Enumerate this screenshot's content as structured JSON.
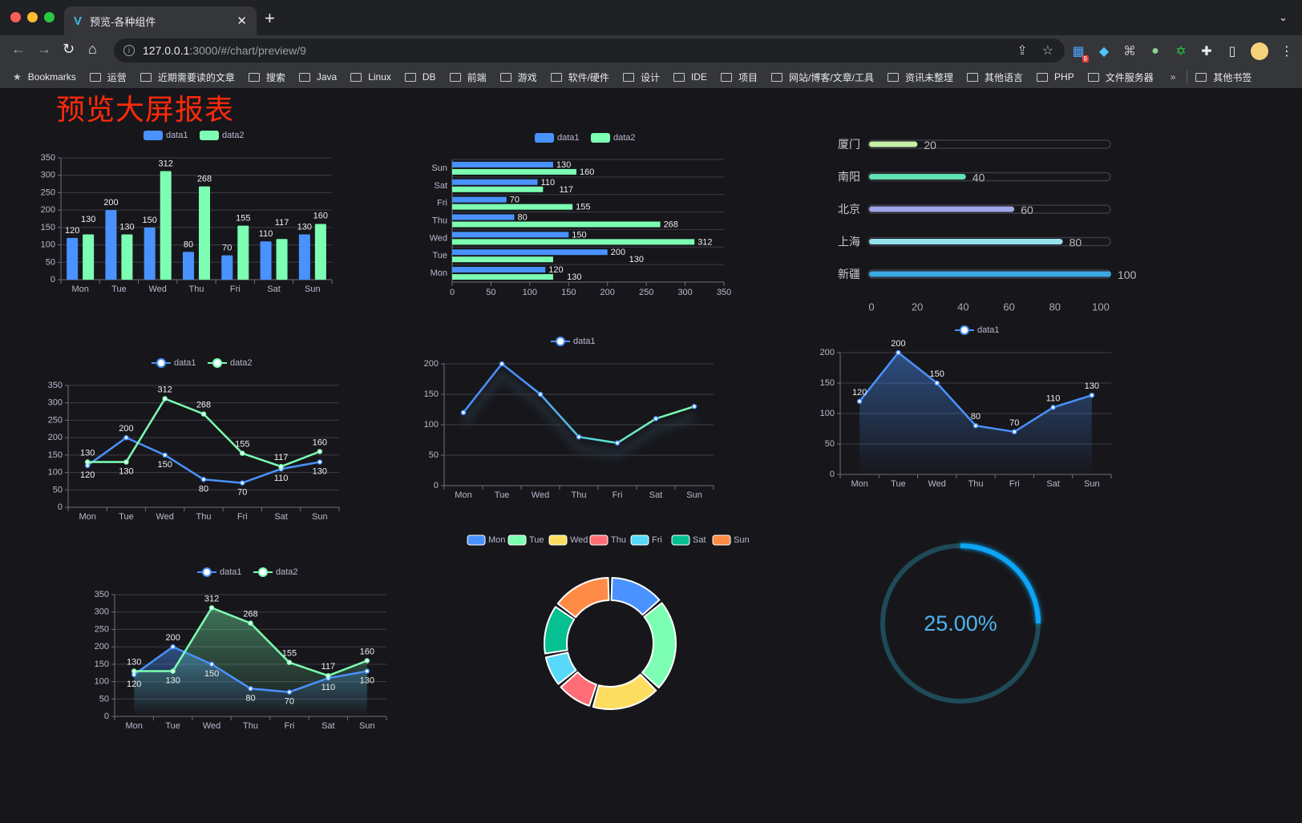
{
  "browser": {
    "tab_title": "预览-各种组件",
    "url_host": "127.0.0.1",
    "url_path": ":3000/#/chart/preview/9",
    "extension_badge": "9",
    "bookmarks_label": "Bookmarks",
    "bookmarks": [
      "运营",
      "近期需要读的文章",
      "搜索",
      "Java",
      "Linux",
      "DB",
      "前端",
      "游戏",
      "软件/硬件",
      "设计",
      "IDE",
      "项目",
      "网站/博客/文章/工具",
      "资讯未整理",
      "其他语言",
      "PHP",
      "文件服务器"
    ],
    "more": "»",
    "other_bookmarks": "其他书签"
  },
  "page": {
    "title": "预览大屏报表"
  },
  "colors": {
    "data1": "#4992ff",
    "data2": "#7cffb2",
    "palette": [
      "#4992ff",
      "#7cffb2",
      "#fddd60",
      "#ff6e76",
      "#58d9f9",
      "#05c091",
      "#ff8a45"
    ],
    "progress": [
      "#c8f0a8",
      "#62e3b3",
      "#9fa5e8",
      "#94e3ec",
      "#3aa8e0"
    ],
    "gauge": "#0ea5f5",
    "title": "#ff2a0a"
  },
  "chart_data": [
    {
      "type": "bar",
      "legend": [
        "data1",
        "data2"
      ],
      "legend_placement": "top",
      "categories": [
        "Mon",
        "Tue",
        "Wed",
        "Thu",
        "Fri",
        "Sat",
        "Sun"
      ],
      "series": [
        {
          "name": "data1",
          "values": [
            120,
            200,
            150,
            80,
            70,
            110,
            130
          ]
        },
        {
          "name": "data2",
          "values": [
            130,
            130,
            312,
            268,
            155,
            117,
            160
          ]
        }
      ],
      "ylim": [
        0,
        350
      ],
      "yticks": [
        0,
        50,
        100,
        150,
        200,
        250,
        300,
        350
      ],
      "grid": true
    },
    {
      "type": "bar",
      "orientation": "horizontal",
      "legend": [
        "data1",
        "data2"
      ],
      "legend_placement": "top",
      "categories": [
        "Mon",
        "Tue",
        "Wed",
        "Thu",
        "Fri",
        "Sat",
        "Sun"
      ],
      "series": [
        {
          "name": "data1",
          "values": [
            120,
            200,
            150,
            80,
            70,
            110,
            130
          ]
        },
        {
          "name": "data2",
          "values": [
            130,
            130,
            312,
            268,
            155,
            117,
            160
          ]
        }
      ],
      "xlim": [
        0,
        350
      ],
      "xticks": [
        0,
        50,
        100,
        150,
        200,
        250,
        300,
        350
      ],
      "grid": true
    },
    {
      "type": "bar",
      "orientation": "horizontal",
      "style": "progress",
      "categories": [
        "厦门",
        "南阳",
        "北京",
        "上海",
        "新疆"
      ],
      "values": [
        20,
        40,
        60,
        80,
        100
      ],
      "xlim": [
        0,
        100
      ],
      "xticks": [
        0,
        20,
        40,
        60,
        80,
        100
      ]
    },
    {
      "type": "line",
      "legend": [
        "data1",
        "data2"
      ],
      "legend_placement": "top",
      "categories": [
        "Mon",
        "Tue",
        "Wed",
        "Thu",
        "Fri",
        "Sat",
        "Sun"
      ],
      "series": [
        {
          "name": "data1",
          "values": [
            120,
            200,
            150,
            80,
            70,
            110,
            130
          ]
        },
        {
          "name": "data2",
          "values": [
            130,
            130,
            312,
            268,
            155,
            117,
            160
          ]
        }
      ],
      "ylim": [
        0,
        350
      ],
      "yticks": [
        0,
        50,
        100,
        150,
        200,
        250,
        300,
        350
      ],
      "grid": true
    },
    {
      "type": "line",
      "legend": [
        "data1"
      ],
      "legend_placement": "top",
      "categories": [
        "Mon",
        "Tue",
        "Wed",
        "Thu",
        "Fri",
        "Sat",
        "Sun"
      ],
      "series": [
        {
          "name": "data1",
          "values": [
            120,
            200,
            150,
            80,
            70,
            110,
            130
          ]
        }
      ],
      "ylim": [
        0,
        200
      ],
      "yticks": [
        0,
        50,
        100,
        150,
        200
      ],
      "grid": true
    },
    {
      "type": "area",
      "legend": [
        "data1"
      ],
      "legend_placement": "top",
      "categories": [
        "Mon",
        "Tue",
        "Wed",
        "Thu",
        "Fri",
        "Sat",
        "Sun"
      ],
      "series": [
        {
          "name": "data1",
          "values": [
            120,
            200,
            150,
            80,
            70,
            110,
            130
          ]
        }
      ],
      "ylim": [
        0,
        200
      ],
      "yticks": [
        0,
        50,
        100,
        150,
        200
      ],
      "grid": true
    },
    {
      "type": "area",
      "legend": [
        "data1",
        "data2"
      ],
      "legend_placement": "top",
      "categories": [
        "Mon",
        "Tue",
        "Wed",
        "Thu",
        "Fri",
        "Sat",
        "Sun"
      ],
      "series": [
        {
          "name": "data1",
          "values": [
            120,
            200,
            150,
            80,
            70,
            110,
            130
          ]
        },
        {
          "name": "data2",
          "values": [
            130,
            130,
            312,
            268,
            155,
            117,
            160
          ]
        }
      ],
      "ylim": [
        0,
        350
      ],
      "yticks": [
        0,
        50,
        100,
        150,
        200,
        250,
        300,
        350
      ],
      "grid": true
    },
    {
      "type": "pie",
      "style": "donut",
      "legend_placement": "top",
      "categories": [
        "Mon",
        "Tue",
        "Wed",
        "Thu",
        "Fri",
        "Sat",
        "Sun"
      ],
      "values": [
        120,
        200,
        150,
        80,
        70,
        110,
        130
      ]
    },
    {
      "type": "gauge",
      "style": "ring",
      "value": 25,
      "max": 100,
      "label": "25.00%"
    }
  ]
}
